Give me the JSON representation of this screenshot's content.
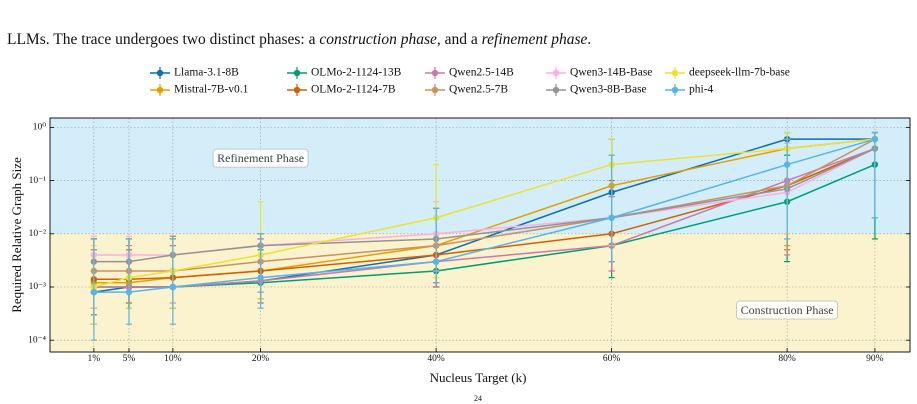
{
  "caption_parts": [
    {
      "text": "LLMs. The trace undergoes two distinct phases: a ",
      "italic": false
    },
    {
      "text": "construction phase",
      "italic": true
    },
    {
      "text": ", and a ",
      "italic": false
    },
    {
      "text": "refinement phase",
      "italic": true
    },
    {
      "text": ".",
      "italic": false
    }
  ],
  "page_number": "24",
  "chart_data": {
    "type": "line",
    "x_label": "Nucleus Target (k)",
    "y_label": "Required Relative Graph Size",
    "log_y": true,
    "grid": true,
    "legend": "top",
    "x": [
      1,
      5,
      10,
      20,
      40,
      60,
      80,
      90
    ],
    "xlim": [
      -4,
      94
    ],
    "xticks": [
      {
        "value": 1,
        "label": "1%"
      },
      {
        "value": 5,
        "label": "5%"
      },
      {
        "value": 10,
        "label": "10%"
      },
      {
        "value": 20,
        "label": "20%"
      },
      {
        "value": 40,
        "label": "40%"
      },
      {
        "value": 60,
        "label": "60%"
      },
      {
        "value": 80,
        "label": "80%"
      },
      {
        "value": 90,
        "label": "90%"
      }
    ],
    "ylim": [
      6e-05,
      1.5
    ],
    "yticks": [
      {
        "value": 0.0001,
        "label": "10⁻⁴"
      },
      {
        "value": 0.001,
        "label": "10⁻³"
      },
      {
        "value": 0.01,
        "label": "10⁻²"
      },
      {
        "value": 0.1,
        "label": "10⁻¹"
      },
      {
        "value": 1,
        "label": "10⁰"
      }
    ],
    "regions": [
      {
        "name": "Refinement Phase",
        "from": 0.01,
        "to": 1.5,
        "color": "#d3eef9",
        "label_x": 20,
        "label_y": 0.25
      },
      {
        "name": "Construction Phase",
        "from": 6e-05,
        "to": 0.01,
        "color": "#fbf3cd",
        "label_x": 80,
        "label_y": 0.00035
      }
    ],
    "series": [
      {
        "name": "Llama-3.1-8B",
        "color": "#0c6faf",
        "values": [
          0.0008,
          0.001,
          0.001,
          0.0013,
          0.004,
          0.06,
          0.6,
          0.6
        ],
        "lower": [
          0.0002,
          0.0004,
          0.0005,
          0.0006,
          0.0012,
          0.003,
          0.01,
          0.02
        ],
        "upper": [
          0.008,
          0.008,
          0.008,
          0.008,
          0.03,
          0.6,
          0.8,
          0.8
        ]
      },
      {
        "name": "Mistral-7B-v0.1",
        "color": "#e69f00",
        "values": [
          0.0012,
          0.0012,
          0.0015,
          0.002,
          0.006,
          0.08,
          0.4,
          0.6
        ],
        "lower": [
          0.0002,
          0.0004,
          0.0004,
          0.0006,
          0.0012,
          0.003,
          0.006,
          0.02
        ],
        "upper": [
          0.008,
          0.008,
          0.009,
          0.01,
          0.03,
          0.3,
          0.6,
          0.8
        ]
      },
      {
        "name": "OLMo-2-1124-13B",
        "color": "#009e73",
        "values": [
          0.001,
          0.001,
          0.001,
          0.0012,
          0.002,
          0.006,
          0.04,
          0.2
        ],
        "lower": [
          0.0004,
          0.0004,
          0.0004,
          0.0005,
          0.001,
          0.0015,
          0.003,
          0.008
        ],
        "upper": [
          0.004,
          0.004,
          0.004,
          0.005,
          0.008,
          0.05,
          0.3,
          0.6
        ]
      },
      {
        "name": "OLMo-2-1124-7B",
        "color": "#d55e00",
        "values": [
          0.0014,
          0.0014,
          0.0015,
          0.002,
          0.004,
          0.01,
          0.08,
          0.4
        ],
        "lower": [
          0.0004,
          0.0005,
          0.0005,
          0.0006,
          0.001,
          0.002,
          0.005,
          0.02
        ],
        "upper": [
          0.005,
          0.005,
          0.006,
          0.008,
          0.02,
          0.1,
          0.5,
          0.8
        ]
      },
      {
        "name": "Qwen2.5-14B",
        "color": "#cc79a7",
        "values": [
          0.001,
          0.001,
          0.001,
          0.0013,
          0.003,
          0.006,
          0.1,
          0.4
        ],
        "lower": [
          0.0002,
          0.0004,
          0.0004,
          0.0005,
          0.001,
          0.002,
          0.004,
          0.02
        ],
        "upper": [
          0.005,
          0.006,
          0.006,
          0.008,
          0.01,
          0.05,
          0.5,
          0.8
        ]
      },
      {
        "name": "Qwen2.5-7B",
        "color": "#ca9161",
        "values": [
          0.002,
          0.002,
          0.002,
          0.003,
          0.006,
          0.02,
          0.08,
          0.6
        ],
        "lower": [
          0.0003,
          0.0004,
          0.0004,
          0.0005,
          0.0012,
          0.003,
          0.005,
          0.02
        ],
        "upper": [
          0.008,
          0.008,
          0.008,
          0.01,
          0.03,
          0.2,
          0.6,
          0.8
        ]
      },
      {
        "name": "Qwen3-14B-Base",
        "color": "#fbafe4",
        "values": [
          0.004,
          0.004,
          0.004,
          0.006,
          0.01,
          0.02,
          0.06,
          0.4
        ],
        "lower": [
          0.0004,
          0.0004,
          0.0005,
          0.0008,
          0.002,
          0.003,
          0.01,
          0.02
        ],
        "upper": [
          0.009,
          0.009,
          0.009,
          0.01,
          0.04,
          0.2,
          0.5,
          0.8
        ]
      },
      {
        "name": "Qwen3-8B-Base",
        "color": "#949494",
        "values": [
          0.003,
          0.003,
          0.004,
          0.006,
          0.008,
          0.02,
          0.07,
          0.4
        ],
        "lower": [
          0.0003,
          0.0004,
          0.0004,
          0.0008,
          0.0012,
          0.003,
          0.008,
          0.02
        ],
        "upper": [
          0.008,
          0.008,
          0.009,
          0.01,
          0.03,
          0.2,
          0.6,
          0.8
        ]
      },
      {
        "name": "deepseek-llm-7b-base",
        "color": "#ece133",
        "values": [
          0.001,
          0.0015,
          0.002,
          0.004,
          0.02,
          0.2,
          0.4,
          0.6
        ],
        "lower": [
          0.0002,
          0.0004,
          0.0004,
          0.0006,
          0.0015,
          0.006,
          0.01,
          0.02
        ],
        "upper": [
          0.006,
          0.008,
          0.008,
          0.04,
          0.2,
          0.6,
          0.8,
          0.8
        ]
      },
      {
        "name": "phi-4",
        "color": "#56b4e9",
        "values": [
          0.0008,
          0.0008,
          0.001,
          0.0015,
          0.003,
          0.02,
          0.2,
          0.6
        ],
        "lower": [
          0.0001,
          0.0002,
          0.0002,
          0.0004,
          0.0012,
          0.003,
          0.008,
          0.02
        ],
        "upper": [
          0.008,
          0.008,
          0.008,
          0.01,
          0.03,
          0.3,
          0.6,
          0.8
        ]
      }
    ]
  }
}
